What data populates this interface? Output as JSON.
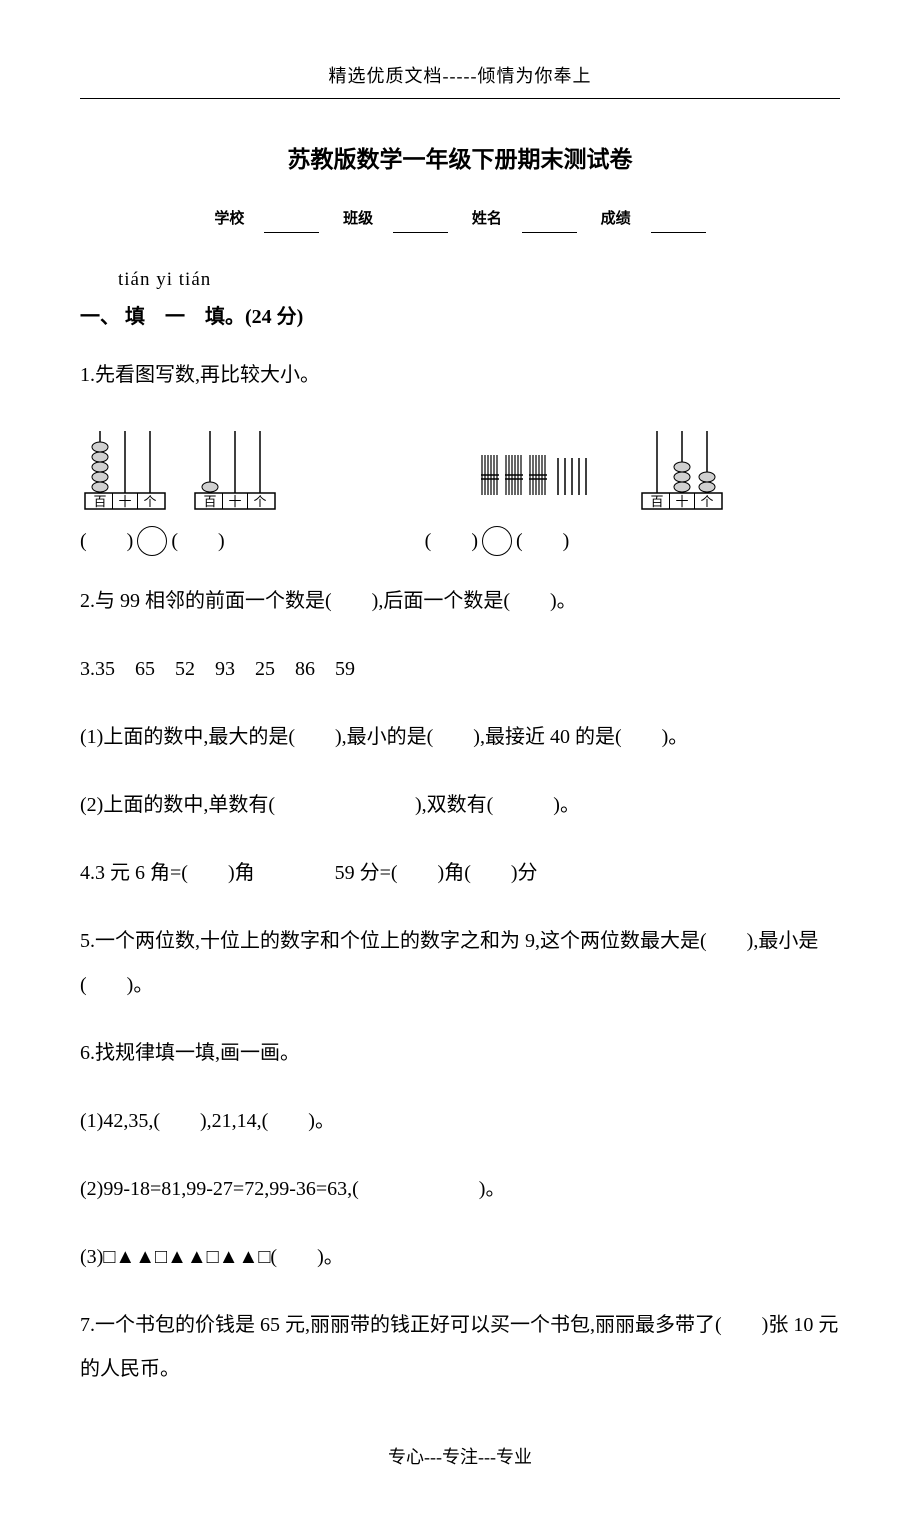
{
  "header": "精选优质文档-----倾情为你奉上",
  "footer": "专心---专注---专业",
  "title": "苏教版数学一年级下册期末测试卷",
  "info": {
    "school": "学校",
    "class": "班级",
    "name": "姓名",
    "score": "成绩"
  },
  "pinyin": "tián yi tián",
  "section1": {
    "heading": "一、 填　一　填。(24 分)",
    "q1": {
      "text": "1.先看图写数,再比较大小。",
      "abacus": [
        {
          "labels": [
            "百",
            "十",
            "个"
          ],
          "beads": [
            5,
            0,
            0
          ]
        },
        {
          "labels": [
            "百",
            "十",
            "个"
          ],
          "beads": [
            1,
            0,
            0
          ]
        },
        {
          "labels": [
            "百",
            "十",
            "个"
          ],
          "beads": [
            0,
            3,
            2
          ]
        }
      ],
      "bundles": {
        "tens": 3,
        "ones": 5
      },
      "answers_left": "(　　)　　　(　　)",
      "answers_right": "(　　)　　　(　　)"
    },
    "q2": "2.与 99 相邻的前面一个数是(　　),后面一个数是(　　)。",
    "q3": {
      "nums": "3.35　65　52　93　25　86　59",
      "p1": "(1)上面的数中,最大的是(　　),最小的是(　　),最接近 40 的是(　　)。",
      "p2": "(2)上面的数中,单数有(　　　　　　　),双数有(　　　)。"
    },
    "q4": "4.3 元 6 角=(　　)角　　　　59 分=(　　)角(　　)分",
    "q5": "5.一个两位数,十位上的数字和个位上的数字之和为 9,这个两位数最大是(　　),最小是(　　)。",
    "q6": {
      "head": "6.找规律填一填,画一画。",
      "p1": "(1)42,35,(　　),21,14,(　　)。",
      "p2": "(2)99-18=81,99-27=72,99-36=63,(　　　　　　)。",
      "p3": "(3)□▲▲□▲▲□▲▲□(　　)。"
    },
    "q7": "7.一个书包的价钱是 65 元,丽丽带的钱正好可以买一个书包,丽丽最多带了(　　)张 10 元的人民币。"
  },
  "colors": {
    "text": "#000000",
    "bg": "#ffffff",
    "stroke": "#000000",
    "bead_fill": "#d0d0d0"
  }
}
